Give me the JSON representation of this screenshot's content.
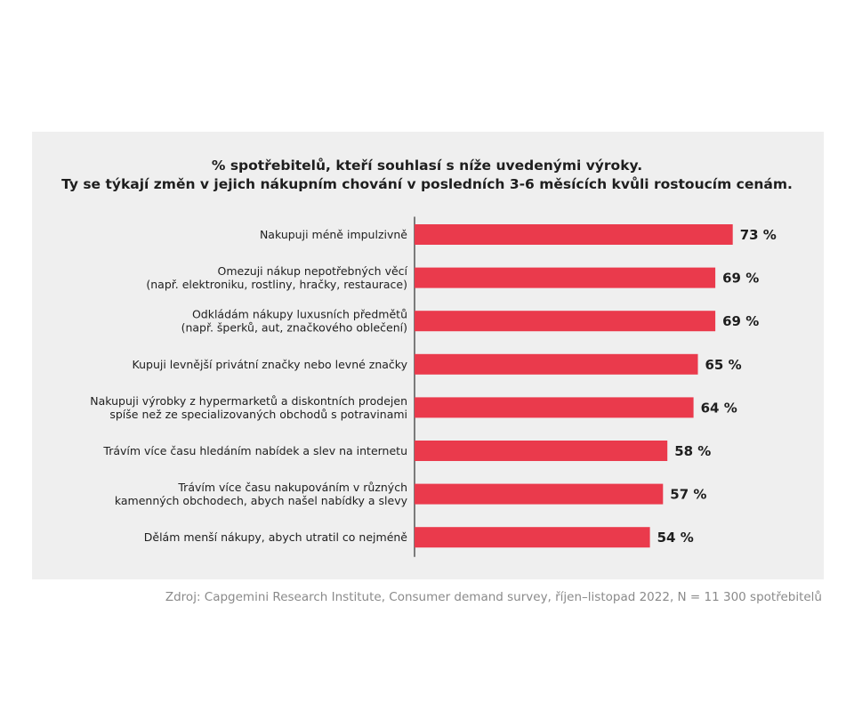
{
  "chart_data": {
    "type": "bar",
    "orientation": "horizontal",
    "title": "% spotřebitelů, kteří souhlasí s níže uvedenými výroky.",
    "subtitle": "Ty se týkají změn v jejich nákupním chování v posledních 3-6 měsících kvůli rostoucím cenám.",
    "categories": [
      [
        "Nakupuji méně impulzivně"
      ],
      [
        "Omezuji nákup nepotřebných věcí",
        "(např. elektroniku, rostliny, hračky, restaurace)"
      ],
      [
        "Odkládám nákupy luxusních předmětů",
        "(např. šperků, aut, značkového oblečení)"
      ],
      [
        "Kupuji levnější privátní značky nebo levné značky"
      ],
      [
        "Nakupuji výrobky z hypermarketů a diskontních prodejen",
        "spíše než ze specializovaných obchodů s potravinami"
      ],
      [
        "Trávím více času hledáním nabídek a slev na internetu"
      ],
      [
        "Trávím více času nakupováním v různých",
        "kamenných obchodech, abych našel nabídky a slevy"
      ],
      [
        "Dělám menší nákupy, abych utratil co nejméně"
      ]
    ],
    "values": [
      73,
      69,
      69,
      65,
      64,
      58,
      57,
      54
    ],
    "value_labels": [
      "73 %",
      "69 %",
      "69 %",
      "65 %",
      "64 %",
      "58 %",
      "57 %",
      "54 %"
    ],
    "xlim": [
      0,
      100
    ],
    "bar_color": "#ea3a4c",
    "grid": false
  },
  "source": "Zdroj: Capgemini Research Institute, Consumer demand survey, říjen–listopad 2022, N =  11 300 spotřebitelů",
  "colors": {
    "panel": "#efefef",
    "bar": "#ea3a4c",
    "text": "#1e1e1e",
    "source": "#8a8a8a",
    "axis": "#555555"
  }
}
